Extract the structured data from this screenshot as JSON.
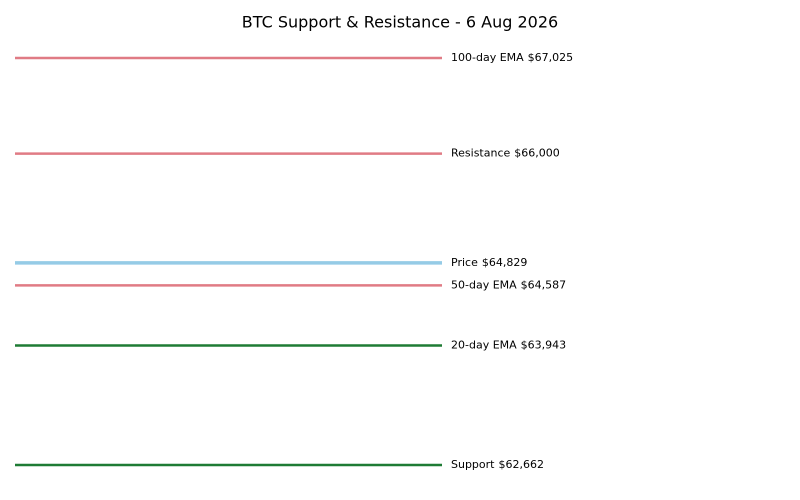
{
  "chart_data": {
    "type": "level-lines",
    "title": "BTC Support & Resistance - 6 Aug 2026",
    "series": [
      {
        "name": "100-day EMA",
        "color": "#e07b85",
        "linewidth": 2.5,
        "values": [
          67025
        ],
        "value_labels": [
          "$67,025"
        ]
      },
      {
        "name": "Resistance",
        "color": "#e07b85",
        "linewidth": 2.5,
        "values": [
          66000
        ],
        "value_labels": [
          "$66,000"
        ]
      },
      {
        "name": "Price",
        "color": "#95cbe6",
        "linewidth": 3.5,
        "values": [
          64829
        ],
        "value_labels": [
          "$64,829"
        ]
      },
      {
        "name": "50-day EMA",
        "color": "#e07b85",
        "linewidth": 2.5,
        "values": [
          64587
        ],
        "value_labels": [
          "$64,587"
        ]
      },
      {
        "name": "20-day EMA",
        "color": "#1e7b34",
        "linewidth": 2.5,
        "values": [
          63943
        ],
        "value_labels": [
          "$63,943"
        ]
      },
      {
        "name": "Support",
        "color": "#1e7b34",
        "linewidth": 2.5,
        "values": [
          62662
        ],
        "value_labels": [
          "$62,662"
        ]
      }
    ]
  }
}
